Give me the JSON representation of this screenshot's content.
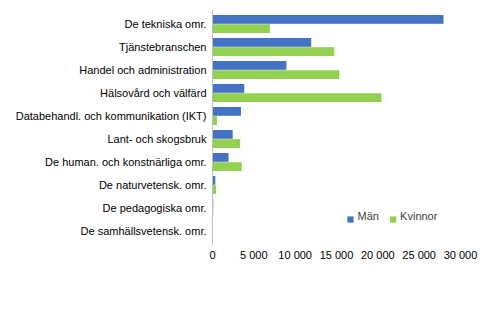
{
  "chart_data": {
    "type": "bar",
    "orientation": "horizontal",
    "categories": [
      "De tekniska omr.",
      "Tjänstebranschen",
      "Handel och administration",
      "Hälsovård och välfärd",
      "Databehandl. och kommunikation (IKT)",
      "Lant- och skogsbruk",
      "De human. och konstnärliga omr.",
      "De naturvetensk. omr.",
      "De pedagogiska omr.",
      "De samhällsvetensk. omr."
    ],
    "series": [
      {
        "name": "Män",
        "color": "#4472c4",
        "values": [
          28000,
          12000,
          9000,
          3900,
          3500,
          2500,
          2000,
          400,
          150,
          100
        ]
      },
      {
        "name": "Kvinnor",
        "color": "#92d050",
        "values": [
          7000,
          14800,
          15400,
          20500,
          600,
          3400,
          3600,
          500,
          150,
          100
        ]
      }
    ],
    "xlim": [
      0,
      30000
    ],
    "xticks": [
      0,
      {
        "value": 5000,
        "label": "5 000"
      },
      {
        "value": 10000,
        "label": "10 000"
      },
      {
        "value": 15000,
        "label": "15 000"
      },
      {
        "value": 20000,
        "label": "20 000"
      },
      {
        "value": 25000,
        "label": "25 000"
      },
      {
        "value": 30000,
        "label": "30 000"
      }
    ],
    "grid": false,
    "legend": "bottom-right"
  }
}
